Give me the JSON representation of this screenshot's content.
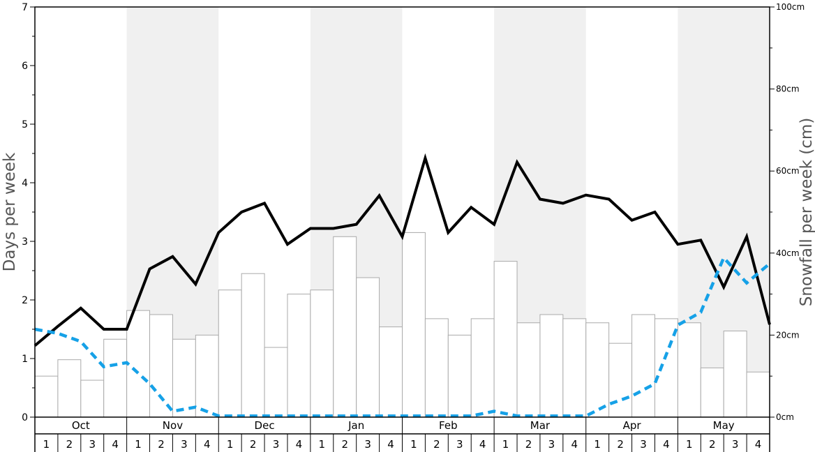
{
  "chart_data": {
    "type": "bar",
    "title": "",
    "ylabel_left": "Days per week",
    "ylabel_right": "Snowfall per week (cm)",
    "ylim_left": [
      0,
      7
    ],
    "ylim_right": [
      0,
      100
    ],
    "yticks_left": [
      "0",
      "1",
      "2",
      "3",
      "4",
      "5",
      "6",
      "7"
    ],
    "yticks_right": [
      "0cm",
      "20cm",
      "40cm",
      "60cm",
      "80cm",
      "100cm"
    ],
    "months": [
      "Oct",
      "Nov",
      "Dec",
      "Jan",
      "Feb",
      "Mar",
      "Apr",
      "May"
    ],
    "weeks": [
      "1",
      "2",
      "3",
      "4"
    ],
    "colors": {
      "bar_fill": "#ffffff",
      "bar_stroke": "#aaaaaa",
      "band": "#f0f0f0",
      "line_solid": "#000000",
      "line_dashed": "#16a1e7"
    },
    "series": [
      {
        "axis": "right",
        "kind": "bar",
        "values": [
          10,
          14,
          9,
          19,
          26,
          25,
          19,
          20,
          31,
          35,
          17,
          30,
          31,
          44,
          34,
          22,
          45,
          24,
          20,
          24,
          38,
          23,
          25,
          24,
          23,
          18,
          25,
          24,
          23,
          12,
          21,
          11
        ]
      },
      {
        "axis": "left",
        "kind": "line",
        "style": "solid",
        "values": [
          1.22,
          1.55,
          1.86,
          1.5,
          1.5,
          2.53,
          2.74,
          2.27,
          3.15,
          3.5,
          3.65,
          2.95,
          3.22,
          3.22,
          3.29,
          3.78,
          3.08,
          4.42,
          3.15,
          3.58,
          3.29,
          4.35,
          3.72,
          3.65,
          3.79,
          3.72,
          3.36,
          3.5,
          2.95,
          3.02,
          2.22,
          3.08,
          1.58
        ]
      },
      {
        "axis": "left",
        "kind": "line",
        "style": "dashed",
        "values": [
          1.5,
          1.43,
          1.29,
          0.86,
          0.93,
          0.57,
          0.1,
          0.17,
          0.02,
          0.02,
          0.02,
          0.02,
          0.02,
          0.02,
          0.02,
          0.02,
          0.02,
          0.02,
          0.02,
          0.02,
          0.1,
          0.02,
          0.02,
          0.02,
          0.02,
          0.22,
          0.36,
          0.57,
          1.57,
          1.79,
          2.72,
          2.29,
          2.62
        ]
      }
    ]
  }
}
